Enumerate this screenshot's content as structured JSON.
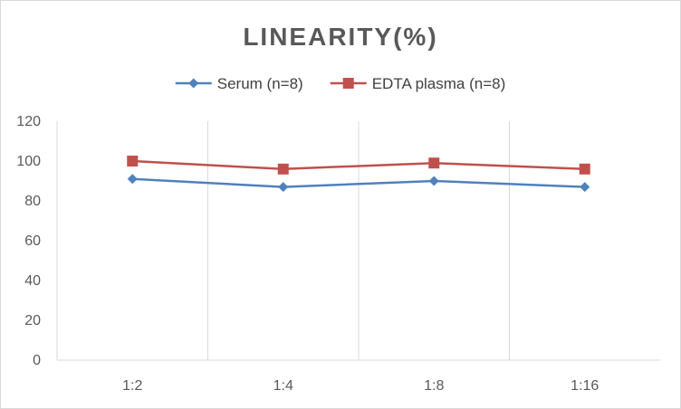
{
  "chart_data": {
    "type": "line",
    "title": "LINEARITY(%)",
    "categories": [
      "1:2",
      "1:4",
      "1:8",
      "1:16"
    ],
    "series": [
      {
        "name": "Serum (n=8)",
        "values": [
          91,
          87,
          90,
          87
        ],
        "color": "#4f81bd",
        "marker": "diamond"
      },
      {
        "name": "EDTA plasma (n=8)",
        "values": [
          100,
          96,
          99,
          96
        ],
        "color": "#c0504d",
        "marker": "square"
      }
    ],
    "yticks": [
      "0",
      "20",
      "40",
      "60",
      "80",
      "100",
      "120"
    ],
    "ylim": [
      0,
      120
    ],
    "grid": "vertical",
    "legend": "top-center",
    "axis_color": "#d9d9d9",
    "grid_color": "#d9d9d9"
  }
}
